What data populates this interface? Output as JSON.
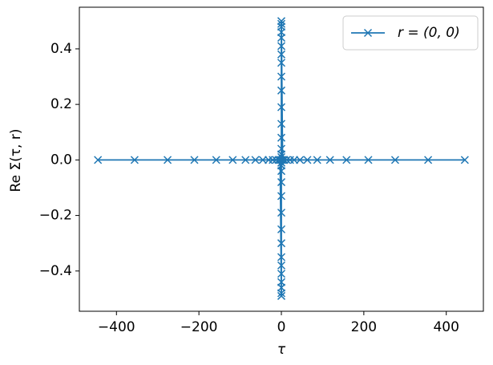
{
  "chart_data": {
    "type": "line",
    "xlabel": "τ",
    "ylabel": "Re Σ(τ, r)",
    "series": [
      {
        "name": "r = (0, 0)",
        "color": "#1f77b4",
        "marker": "x",
        "x": [
          -445,
          -356,
          -276,
          -211,
          -158,
          -118,
          -87,
          -63,
          -45,
          -31,
          -21,
          -13,
          -7,
          -3,
          0,
          0,
          0,
          0,
          0,
          0,
          0,
          0,
          0,
          0,
          0,
          0,
          0,
          0,
          0,
          0,
          0,
          0,
          0,
          0,
          0,
          0,
          0,
          0,
          0,
          0,
          0,
          0,
          0,
          0,
          0,
          0,
          3,
          7,
          13,
          21,
          31,
          45,
          63,
          87,
          118,
          158,
          211,
          276,
          356,
          445
        ],
        "values": [
          0,
          0,
          0,
          0,
          0,
          0,
          0,
          0,
          0,
          0,
          0,
          0,
          0,
          0,
          -0.49,
          -0.48,
          -0.46,
          -0.44,
          -0.41,
          -0.38,
          -0.35,
          -0.3,
          -0.25,
          -0.19,
          -0.13,
          -0.08,
          -0.04,
          -0.02,
          -0.01,
          0,
          0.01,
          0.02,
          0.04,
          0.08,
          0.13,
          0.19,
          0.25,
          0.3,
          0.35,
          0.38,
          0.41,
          0.44,
          0.46,
          0.48,
          0.49,
          0.5,
          0,
          0,
          0,
          0,
          0,
          0,
          0,
          0,
          0,
          0,
          0,
          0,
          0,
          0
        ]
      }
    ],
    "xlim": [
      -490,
      490
    ],
    "xticks": [
      {
        "value": -400,
        "label": "−400"
      },
      {
        "value": -200,
        "label": "−200"
      },
      0,
      200,
      400
    ],
    "ylim": [
      -0.545,
      0.55
    ],
    "yticks": [
      {
        "value": -0.4,
        "label": "−0.4"
      },
      {
        "value": -0.2,
        "label": "−0.2"
      },
      {
        "value": 0,
        "label": "0.0"
      },
      0.2,
      0.4
    ],
    "legend": "upper right",
    "grid": false
  }
}
